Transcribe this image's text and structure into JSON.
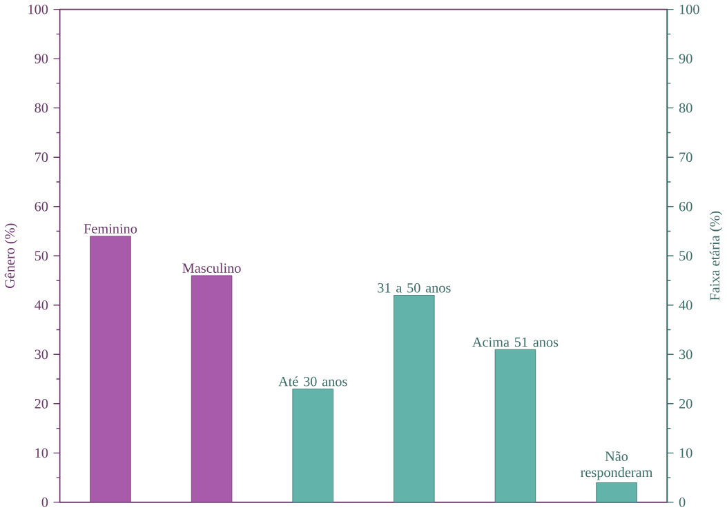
{
  "chart_data": {
    "type": "bar",
    "categories": [
      null,
      null,
      null,
      null,
      null,
      null
    ],
    "values": [
      54,
      46,
      23,
      42,
      31,
      4
    ],
    "colors": [
      "#a95bab",
      "#a95bab",
      "#62b3aa",
      "#62b3aa",
      "#62b3aa",
      "#62b3aa"
    ],
    "annotations": [
      {
        "text": "Feminino",
        "y": 54
      },
      {
        "text": "Masculino",
        "y": 46
      },
      {
        "text": "Até 30 anos",
        "y": 23
      },
      {
        "text": "31 a 50 anos",
        "y": 42
      },
      {
        "text": "Acima 51 anos",
        "y": 31
      },
      {
        "text": "Não responderam",
        "y": 4
      }
    ],
    "ylabel": "Gênero (%)",
    "y2label": "Faixa etária (%)",
    "ylim": [
      0,
      100
    ],
    "yticks": [
      0,
      10,
      20,
      30,
      40,
      50,
      60,
      70,
      80,
      90,
      100
    ],
    "y2lim": [
      0,
      100
    ],
    "y2ticks": [
      0,
      10,
      20,
      30,
      40,
      50,
      60,
      70,
      80,
      90,
      100
    ],
    "tick_labels": "y"
  }
}
